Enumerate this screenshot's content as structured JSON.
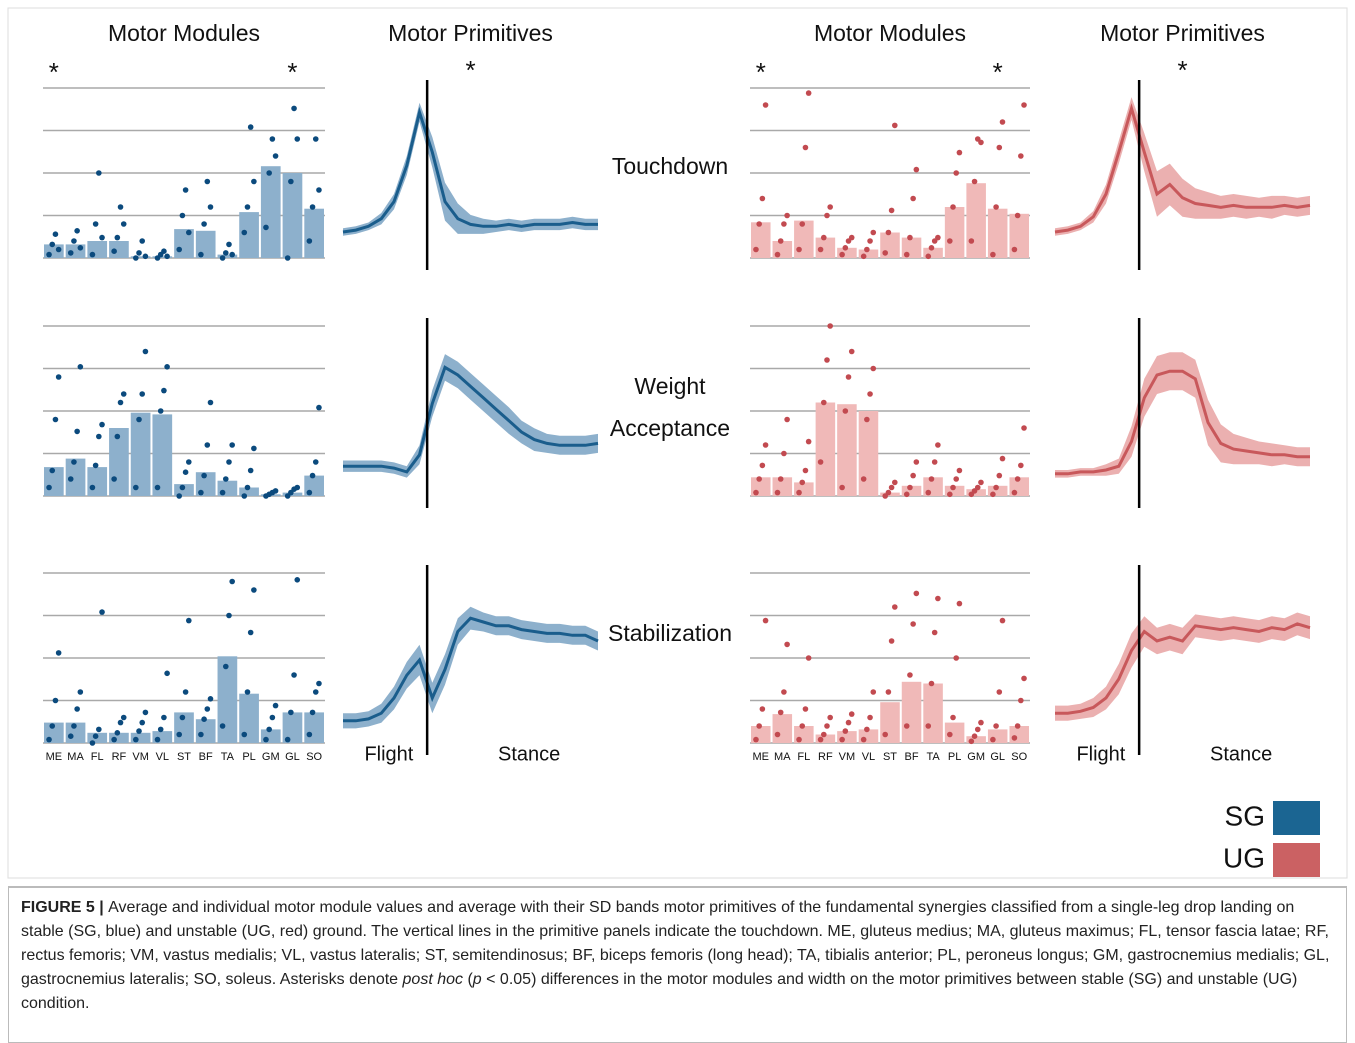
{
  "column_titles": [
    "Motor Modules",
    "Motor Primitives",
    "Motor Modules",
    "Motor Primitives"
  ],
  "row_labels": [
    [
      "Touchdown"
    ],
    [
      "Weight",
      "Acceptance"
    ],
    [
      "Stabilization"
    ]
  ],
  "muscles": [
    "ME",
    "MA",
    "FL",
    "RF",
    "VM",
    "VL",
    "ST",
    "BF",
    "TA",
    "PL",
    "GM",
    "GL",
    "SO"
  ],
  "legend": [
    {
      "name": "SG",
      "color": "#1b6592"
    },
    {
      "name": "UG",
      "color": "#cb6163"
    }
  ],
  "chart_data": [
    {
      "type": "bar",
      "show_categories": false,
      "ylim": [
        0,
        1
      ],
      "yticks": [
        0,
        0.25,
        0.5,
        0.75,
        1
      ],
      "color": "#0b4a7d",
      "bar_color": "#8db0cc",
      "annotations": [
        {
          "label": "*",
          "category": "ME"
        },
        {
          "label": "*",
          "category": "GL"
        }
      ],
      "values": [
        0.08,
        0.08,
        0.1,
        0.1,
        0.01,
        0.01,
        0.17,
        0.16,
        0.02,
        0.27,
        0.54,
        0.5,
        0.29
      ],
      "points": [
        [
          0.02,
          0.08,
          0.14,
          0.05
        ],
        [
          0.03,
          0.1,
          0.16,
          0.06
        ],
        [
          0.02,
          0.2,
          0.5,
          0.12
        ],
        [
          0.04,
          0.12,
          0.3,
          0.2
        ],
        [
          0.0,
          0.03,
          0.1,
          0.01
        ],
        [
          0.0,
          0.02,
          0.04,
          0.01
        ],
        [
          0.05,
          0.25,
          0.4,
          0.15
        ],
        [
          0.02,
          0.2,
          0.45,
          0.3
        ],
        [
          0.0,
          0.03,
          0.08,
          0.02
        ],
        [
          0.15,
          0.3,
          0.77,
          0.45
        ],
        [
          0.18,
          0.5,
          0.7,
          0.6
        ],
        [
          0.0,
          0.45,
          0.88,
          0.7
        ],
        [
          0.1,
          0.3,
          0.7,
          0.4
        ]
      ]
    },
    {
      "type": "line",
      "xlim": [
        0,
        100
      ],
      "ylim": [
        0,
        1
      ],
      "vline": 33,
      "color": "#1a5d8c",
      "band_color": "#8db0cc",
      "annotation": "*",
      "x": [
        0,
        5,
        10,
        15,
        20,
        25,
        30,
        35,
        40,
        45,
        50,
        55,
        60,
        65,
        70,
        75,
        80,
        85,
        90,
        95,
        100
      ],
      "values": [
        0.2,
        0.21,
        0.23,
        0.27,
        0.36,
        0.55,
        0.83,
        0.62,
        0.36,
        0.27,
        0.24,
        0.23,
        0.23,
        0.24,
        0.23,
        0.24,
        0.24,
        0.24,
        0.25,
        0.24,
        0.24
      ],
      "sd": [
        0.02,
        0.02,
        0.02,
        0.03,
        0.04,
        0.05,
        0.05,
        0.08,
        0.1,
        0.08,
        0.05,
        0.04,
        0.03,
        0.03,
        0.03,
        0.03,
        0.03,
        0.03,
        0.03,
        0.03,
        0.03
      ]
    },
    {
      "type": "bar",
      "show_categories": false,
      "ylim": [
        0,
        1
      ],
      "yticks": [
        0,
        0.25,
        0.5,
        0.75,
        1
      ],
      "color": "#c24a50",
      "bar_color": "#f0b9b8",
      "annotations": [
        {
          "label": "*",
          "category": "ME"
        },
        {
          "label": "*",
          "category": "GL"
        }
      ],
      "values": [
        0.21,
        0.1,
        0.22,
        0.12,
        0.06,
        0.05,
        0.15,
        0.12,
        0.06,
        0.3,
        0.44,
        0.29,
        0.26
      ],
      "points": [
        [
          0.05,
          0.2,
          0.35,
          0.9
        ],
        [
          0.02,
          0.1,
          0.2,
          0.25
        ],
        [
          0.05,
          0.2,
          0.65,
          0.97
        ],
        [
          0.05,
          0.12,
          0.25,
          0.3
        ],
        [
          0.02,
          0.06,
          0.1,
          0.12
        ],
        [
          0.01,
          0.05,
          0.1,
          0.15
        ],
        [
          0.03,
          0.15,
          0.28,
          0.78
        ],
        [
          0.02,
          0.12,
          0.35,
          0.52
        ],
        [
          0.01,
          0.06,
          0.1,
          0.12
        ],
        [
          0.1,
          0.3,
          0.5,
          0.62
        ],
        [
          0.1,
          0.45,
          0.7,
          0.68
        ],
        [
          0.02,
          0.3,
          0.65,
          0.8
        ],
        [
          0.05,
          0.25,
          0.6,
          0.9
        ]
      ]
    },
    {
      "type": "line",
      "xlim": [
        0,
        100
      ],
      "ylim": [
        0,
        1
      ],
      "vline": 33,
      "color": "#c8585b",
      "band_color": "#ebb0b0",
      "annotation": "*",
      "x": [
        0,
        5,
        10,
        15,
        20,
        25,
        30,
        35,
        40,
        45,
        50,
        55,
        60,
        65,
        70,
        75,
        80,
        85,
        90,
        95,
        100
      ],
      "values": [
        0.2,
        0.21,
        0.23,
        0.28,
        0.4,
        0.62,
        0.85,
        0.62,
        0.4,
        0.45,
        0.38,
        0.35,
        0.34,
        0.33,
        0.34,
        0.33,
        0.33,
        0.33,
        0.34,
        0.33,
        0.34
      ],
      "sd": [
        0.02,
        0.02,
        0.02,
        0.03,
        0.05,
        0.06,
        0.06,
        0.1,
        0.12,
        0.11,
        0.1,
        0.08,
        0.07,
        0.06,
        0.06,
        0.06,
        0.05,
        0.06,
        0.05,
        0.05,
        0.05
      ]
    },
    {
      "type": "bar",
      "show_categories": false,
      "ylim": [
        0,
        1
      ],
      "yticks": [
        0,
        0.25,
        0.5,
        0.75,
        1
      ],
      "color": "#0b4a7d",
      "bar_color": "#8db0cc",
      "values": [
        0.17,
        0.22,
        0.17,
        0.4,
        0.49,
        0.48,
        0.07,
        0.14,
        0.09,
        0.05,
        0.01,
        0.02,
        0.12
      ],
      "points": [
        [
          0.05,
          0.15,
          0.45,
          0.7
        ],
        [
          0.1,
          0.2,
          0.38,
          0.76
        ],
        [
          0.05,
          0.18,
          0.35,
          0.42
        ],
        [
          0.1,
          0.35,
          0.55,
          0.6
        ],
        [
          0.05,
          0.45,
          0.6,
          0.85
        ],
        [
          0.05,
          0.5,
          0.62,
          0.76
        ],
        [
          0.0,
          0.05,
          0.14,
          0.2
        ],
        [
          0.02,
          0.12,
          0.3,
          0.55
        ],
        [
          0.02,
          0.1,
          0.2,
          0.3
        ],
        [
          0.0,
          0.05,
          0.15,
          0.28
        ],
        [
          0.0,
          0.01,
          0.02,
          0.03
        ],
        [
          0.0,
          0.02,
          0.04,
          0.05
        ],
        [
          0.02,
          0.12,
          0.2,
          0.52
        ]
      ]
    },
    {
      "type": "line",
      "xlim": [
        0,
        100
      ],
      "ylim": [
        0,
        1
      ],
      "vline": 33,
      "color": "#1a5d8c",
      "band_color": "#8db0cc",
      "x": [
        0,
        5,
        10,
        15,
        20,
        25,
        30,
        35,
        40,
        45,
        50,
        55,
        60,
        65,
        70,
        75,
        80,
        85,
        90,
        95,
        100
      ],
      "values": [
        0.22,
        0.22,
        0.22,
        0.22,
        0.21,
        0.19,
        0.28,
        0.55,
        0.74,
        0.7,
        0.64,
        0.58,
        0.52,
        0.46,
        0.4,
        0.36,
        0.34,
        0.33,
        0.33,
        0.33,
        0.34
      ],
      "sd": [
        0.03,
        0.03,
        0.03,
        0.03,
        0.03,
        0.03,
        0.05,
        0.07,
        0.07,
        0.07,
        0.07,
        0.07,
        0.07,
        0.07,
        0.06,
        0.06,
        0.05,
        0.05,
        0.05,
        0.05,
        0.05
      ]
    },
    {
      "type": "bar",
      "show_categories": false,
      "ylim": [
        0,
        1
      ],
      "yticks": [
        0,
        0.25,
        0.5,
        0.75,
        1
      ],
      "color": "#c24a50",
      "bar_color": "#f0b9b8",
      "values": [
        0.11,
        0.11,
        0.08,
        0.55,
        0.54,
        0.5,
        0.02,
        0.06,
        0.11,
        0.06,
        0.04,
        0.06,
        0.11
      ],
      "points": [
        [
          0.02,
          0.1,
          0.18,
          0.3
        ],
        [
          0.02,
          0.1,
          0.25,
          0.45
        ],
        [
          0.02,
          0.08,
          0.15,
          0.32
        ],
        [
          0.2,
          0.55,
          0.8,
          1.0
        ],
        [
          0.05,
          0.5,
          0.7,
          0.85
        ],
        [
          0.1,
          0.45,
          0.6,
          0.75
        ],
        [
          0.0,
          0.02,
          0.05,
          0.08
        ],
        [
          0.01,
          0.05,
          0.12,
          0.2
        ],
        [
          0.02,
          0.1,
          0.2,
          0.3
        ],
        [
          0.01,
          0.05,
          0.1,
          0.15
        ],
        [
          0.01,
          0.03,
          0.05,
          0.08
        ],
        [
          0.01,
          0.05,
          0.12,
          0.22
        ],
        [
          0.02,
          0.1,
          0.18,
          0.4
        ]
      ]
    },
    {
      "type": "line",
      "xlim": [
        0,
        100
      ],
      "ylim": [
        0,
        1
      ],
      "vline": 33,
      "color": "#c8585b",
      "band_color": "#ebb0b0",
      "x": [
        0,
        5,
        10,
        15,
        20,
        25,
        30,
        35,
        40,
        45,
        50,
        55,
        60,
        65,
        70,
        75,
        80,
        85,
        90,
        95,
        100
      ],
      "values": [
        0.18,
        0.18,
        0.19,
        0.19,
        0.2,
        0.22,
        0.35,
        0.58,
        0.7,
        0.72,
        0.72,
        0.68,
        0.45,
        0.34,
        0.31,
        0.3,
        0.29,
        0.28,
        0.28,
        0.27,
        0.27
      ],
      "sd": [
        0.02,
        0.02,
        0.02,
        0.02,
        0.03,
        0.04,
        0.08,
        0.1,
        0.1,
        0.1,
        0.1,
        0.1,
        0.12,
        0.1,
        0.08,
        0.07,
        0.06,
        0.06,
        0.05,
        0.05,
        0.05
      ]
    },
    {
      "type": "bar",
      "show_categories": true,
      "ylim": [
        0,
        1
      ],
      "yticks": [
        0,
        0.25,
        0.5,
        0.75,
        1
      ],
      "color": "#0b4a7d",
      "bar_color": "#8db0cc",
      "values": [
        0.12,
        0.12,
        0.06,
        0.06,
        0.06,
        0.07,
        0.18,
        0.14,
        0.51,
        0.29,
        0.08,
        0.18,
        0.18
      ],
      "points": [
        [
          0.02,
          0.1,
          0.25,
          0.53
        ],
        [
          0.04,
          0.1,
          0.2,
          0.3
        ],
        [
          0.0,
          0.04,
          0.08,
          0.77
        ],
        [
          0.02,
          0.06,
          0.12,
          0.15
        ],
        [
          0.02,
          0.07,
          0.12,
          0.18
        ],
        [
          0.02,
          0.08,
          0.15,
          0.41
        ],
        [
          0.05,
          0.15,
          0.3,
          0.72
        ],
        [
          0.05,
          0.14,
          0.2,
          0.26
        ],
        [
          0.1,
          0.45,
          0.75,
          0.95
        ],
        [
          0.05,
          0.3,
          0.65,
          0.9
        ],
        [
          0.02,
          0.08,
          0.15,
          0.22
        ],
        [
          0.02,
          0.18,
          0.4,
          0.96
        ],
        [
          0.05,
          0.18,
          0.3,
          0.35
        ]
      ]
    },
    {
      "type": "line",
      "xlim": [
        0,
        100
      ],
      "ylim": [
        0,
        1
      ],
      "vline": 33,
      "color": "#1a5d8c",
      "band_color": "#8db0cc",
      "phase_labels": [
        "Flight",
        "Stance"
      ],
      "x": [
        0,
        5,
        10,
        15,
        20,
        25,
        30,
        35,
        40,
        45,
        50,
        55,
        60,
        65,
        70,
        75,
        80,
        85,
        90,
        95,
        100
      ],
      "values": [
        0.18,
        0.18,
        0.19,
        0.22,
        0.3,
        0.42,
        0.5,
        0.3,
        0.45,
        0.65,
        0.72,
        0.7,
        0.68,
        0.68,
        0.66,
        0.65,
        0.64,
        0.64,
        0.63,
        0.63,
        0.6
      ],
      "sd": [
        0.04,
        0.04,
        0.04,
        0.05,
        0.06,
        0.07,
        0.08,
        0.08,
        0.08,
        0.07,
        0.06,
        0.05,
        0.05,
        0.05,
        0.05,
        0.05,
        0.05,
        0.05,
        0.05,
        0.05,
        0.05
      ]
    },
    {
      "type": "bar",
      "show_categories": true,
      "ylim": [
        0,
        1
      ],
      "yticks": [
        0,
        0.25,
        0.5,
        0.75,
        1
      ],
      "color": "#c24a50",
      "bar_color": "#f0b9b8",
      "values": [
        0.1,
        0.17,
        0.1,
        0.05,
        0.07,
        0.08,
        0.24,
        0.36,
        0.35,
        0.12,
        0.04,
        0.08,
        0.1
      ],
      "points": [
        [
          0.02,
          0.1,
          0.2,
          0.72
        ],
        [
          0.05,
          0.18,
          0.3,
          0.58
        ],
        [
          0.02,
          0.1,
          0.2,
          0.5
        ],
        [
          0.02,
          0.05,
          0.1,
          0.15
        ],
        [
          0.02,
          0.07,
          0.12,
          0.17
        ],
        [
          0.02,
          0.08,
          0.15,
          0.3
        ],
        [
          0.05,
          0.3,
          0.6,
          0.8
        ],
        [
          0.1,
          0.4,
          0.7,
          0.88
        ],
        [
          0.1,
          0.35,
          0.65,
          0.85
        ],
        [
          0.05,
          0.15,
          0.5,
          0.82
        ],
        [
          0.01,
          0.04,
          0.08,
          0.12
        ],
        [
          0.02,
          0.1,
          0.3,
          0.72
        ],
        [
          0.03,
          0.1,
          0.25,
          0.38
        ]
      ]
    },
    {
      "type": "line",
      "xlim": [
        0,
        100
      ],
      "ylim": [
        0,
        1
      ],
      "vline": 33,
      "color": "#c8585b",
      "band_color": "#ebb0b0",
      "phase_labels": [
        "Flight",
        "Stance"
      ],
      "x": [
        0,
        5,
        10,
        15,
        20,
        25,
        30,
        35,
        40,
        45,
        50,
        55,
        60,
        65,
        70,
        75,
        80,
        85,
        90,
        95,
        100
      ],
      "values": [
        0.22,
        0.22,
        0.23,
        0.25,
        0.3,
        0.4,
        0.55,
        0.65,
        0.6,
        0.62,
        0.6,
        0.68,
        0.67,
        0.66,
        0.67,
        0.66,
        0.65,
        0.67,
        0.66,
        0.69,
        0.67
      ],
      "sd": [
        0.04,
        0.04,
        0.04,
        0.05,
        0.06,
        0.08,
        0.09,
        0.08,
        0.07,
        0.07,
        0.07,
        0.06,
        0.06,
        0.06,
        0.06,
        0.06,
        0.06,
        0.06,
        0.06,
        0.06,
        0.06
      ]
    }
  ],
  "caption": [
    {
      "text": "FIGURE 5 | ",
      "style": "bold"
    },
    {
      "text": "Average and individual motor module values and average with their SD bands motor primitives of the fundamental synergies classified from a single-leg drop landing on stable (SG, blue) and unstable (UG, red) ground. The vertical lines in the primitive panels indicate the touchdown. ME, gluteus medius; MA, gluteus maximus; FL, tensor fascia latae; RF, rectus femoris; VM, vastus medialis; VL, vastus lateralis; ST, semitendinosus; BF, biceps femoris (long head); TA, tibialis anterior; PL, peroneus longus; GM, gastrocnemius medialis; GL, gastrocnemius lateralis; SO, soleus. Asterisks denote ",
      "style": "normal"
    },
    {
      "text": "post hoc",
      "style": "italic"
    },
    {
      "text": " (",
      "style": "normal"
    },
    {
      "text": "p",
      "style": "italic"
    },
    {
      "text": " < 0.05) differences in the motor modules and width on the motor primitives between stable (SG) and unstable (UG) condition.",
      "style": "normal"
    }
  ]
}
